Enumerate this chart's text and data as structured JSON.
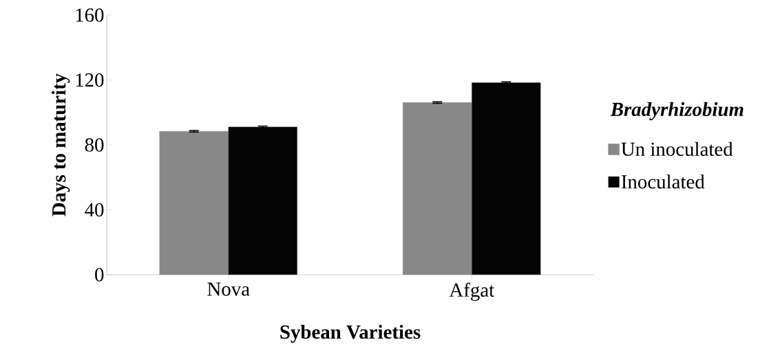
{
  "chart_data": {
    "type": "bar",
    "xlabel": "Sybean Varieties",
    "ylabel": "Days to maturity",
    "legend_title": "Bradyrhizobium",
    "categories": [
      "Nova",
      "Afgat"
    ],
    "series": [
      {
        "name": "Un inoculated",
        "color": "#888888",
        "values": [
          88.4,
          106.1
        ],
        "errors": [
          0.5,
          0.5
        ]
      },
      {
        "name": "Inoculated",
        "color": "#050505",
        "values": [
          91.1,
          118.4
        ],
        "errors": [
          0.5,
          0.5
        ]
      }
    ],
    "ylim": [
      0,
      160
    ],
    "yticks": [
      0,
      40,
      80,
      120,
      160
    ],
    "grid": false,
    "legend": "right"
  }
}
